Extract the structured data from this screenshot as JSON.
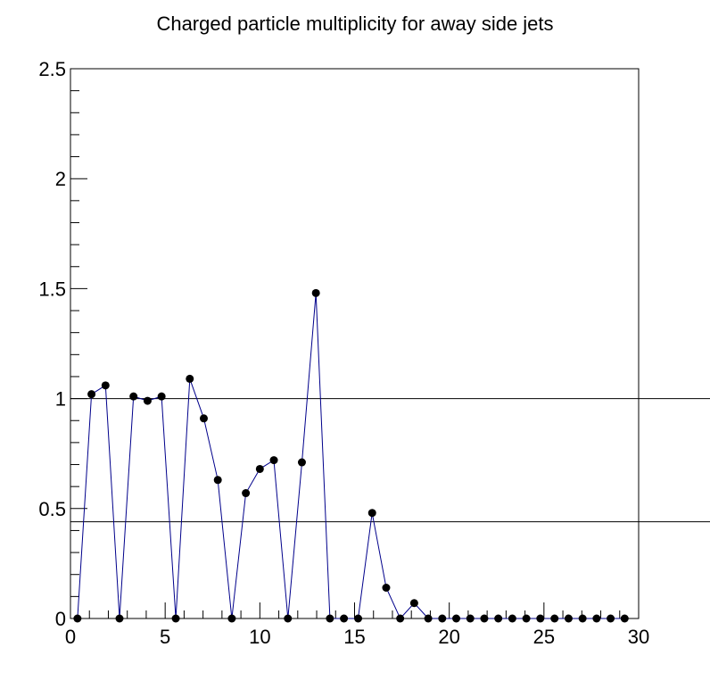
{
  "chart_data": {
    "type": "scatter",
    "title": "Charged particle multiplicity for away side jets",
    "xlabel": "",
    "ylabel": "",
    "xlim": [
      0,
      30
    ],
    "ylim": [
      0,
      2.5
    ],
    "x_ticks": [
      "0",
      "5",
      "10",
      "15",
      "20",
      "25",
      "30"
    ],
    "y_ticks": [
      "0",
      "0.5",
      "1",
      "1.5",
      "2",
      "2.5"
    ],
    "grid": false,
    "legend": "none",
    "marker_color": "#000000",
    "line_color": "#00008b",
    "reference_lines_y": [
      1.0,
      0.44
    ],
    "series": [
      {
        "x": [
          0.37,
          1.11,
          1.85,
          2.59,
          3.33,
          4.07,
          4.81,
          5.56,
          6.3,
          7.04,
          7.78,
          8.52,
          9.26,
          10.0,
          10.74,
          11.48,
          12.22,
          12.96,
          13.7,
          14.44,
          15.19,
          15.93,
          16.67,
          17.41,
          18.15,
          18.89,
          19.63,
          20.37,
          21.11,
          21.85,
          22.59,
          23.33,
          24.07,
          24.81,
          25.56,
          26.3,
          27.04,
          27.78,
          28.52,
          29.26
        ],
        "y": [
          0,
          1.02,
          1.06,
          0,
          1.01,
          0.99,
          1.01,
          0,
          1.09,
          0.91,
          0.63,
          0,
          0.57,
          0.68,
          0.72,
          0,
          0.71,
          1.48,
          0,
          0,
          0,
          0.48,
          0.14,
          0,
          0.07,
          0,
          0,
          0,
          0,
          0,
          0,
          0,
          0,
          0,
          0,
          0,
          0,
          0,
          0,
          0
        ]
      }
    ]
  }
}
